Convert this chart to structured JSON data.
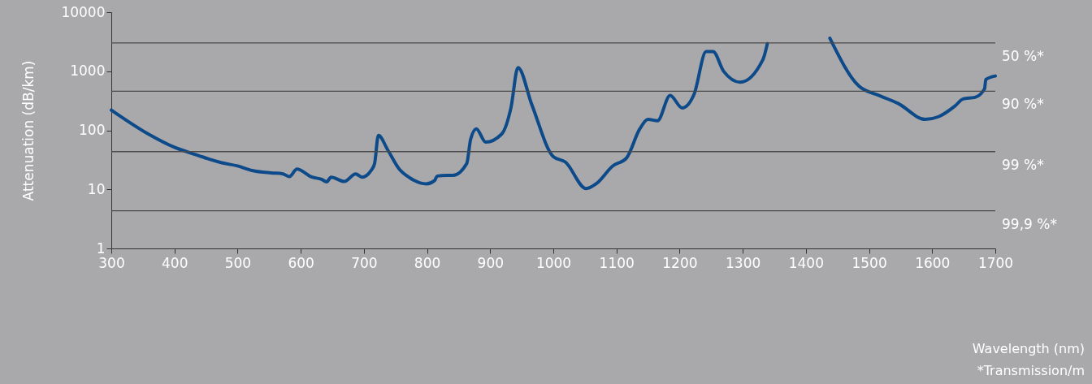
{
  "chart_data": {
    "type": "line",
    "ylabel": "Attenuation (dB/km)",
    "log": true,
    "xlim": [
      300,
      1700
    ],
    "xticks": [
      300,
      400,
      500,
      600,
      700,
      800,
      900,
      1000,
      1100,
      1200,
      1300,
      1400,
      1500,
      1600,
      1700
    ],
    "ylim": [
      1,
      10000
    ],
    "yticks": [
      1,
      10,
      100,
      1000,
      10000
    ],
    "grid": false,
    "x": [
      300,
      359,
      400,
      437,
      475,
      500,
      523,
      553,
      572,
      582,
      594,
      618,
      633,
      641,
      648,
      669,
      687,
      697,
      712,
      717,
      723,
      738,
      756,
      773,
      799,
      812,
      816,
      831,
      841,
      863,
      869,
      878,
      893,
      918,
      933,
      944,
      966,
      1000,
      1019,
      1052,
      1069,
      1094,
      1116,
      1137,
      1150,
      1165,
      1185,
      1204,
      1223,
      1242,
      1253,
      1270,
      1296,
      1332,
      1339,
      1390,
      1438,
      1484,
      1516,
      1546,
      1589,
      1610,
      1636,
      1649,
      1668,
      1683,
      1685,
      1700
    ],
    "series": [
      {
        "color": "#0d4a8a",
        "values": [
          220,
          86,
          51.5,
          37.7,
          28.2,
          24.9,
          20.9,
          19,
          18.3,
          16.4,
          22,
          16.1,
          14.8,
          13.4,
          16.1,
          13.6,
          18.3,
          16.1,
          21.3,
          27.6,
          82,
          46,
          22,
          15.6,
          12.4,
          14.1,
          16.8,
          17.3,
          17.3,
          27.6,
          70,
          106,
          63,
          86,
          244,
          1156,
          271,
          35.8,
          29.1,
          10.3,
          12.7,
          24.9,
          34,
          106,
          153,
          145,
          389,
          239,
          410,
          2150,
          2150,
          989,
          653,
          1578,
          2940,
          null,
          3620,
          560,
          389,
          285,
          153,
          170,
          257,
          340,
          362,
          504,
          725,
          830
        ]
      }
    ],
    "ref_lines": [
      {
        "axis": "y",
        "value": 3010,
        "color": "#4a4a4a"
      },
      {
        "axis": "y",
        "value": 458,
        "color": "#4a4a4a"
      },
      {
        "axis": "y",
        "value": 43.6,
        "color": "#4a4a4a"
      },
      {
        "axis": "y",
        "value": 4.35,
        "color": "#4a4a4a"
      }
    ],
    "annotations": [
      "50 %*",
      "90 %*",
      "99 %*",
      "99,9 %*",
      "Wavelength (nm)",
      "*Transmission/m"
    ]
  }
}
